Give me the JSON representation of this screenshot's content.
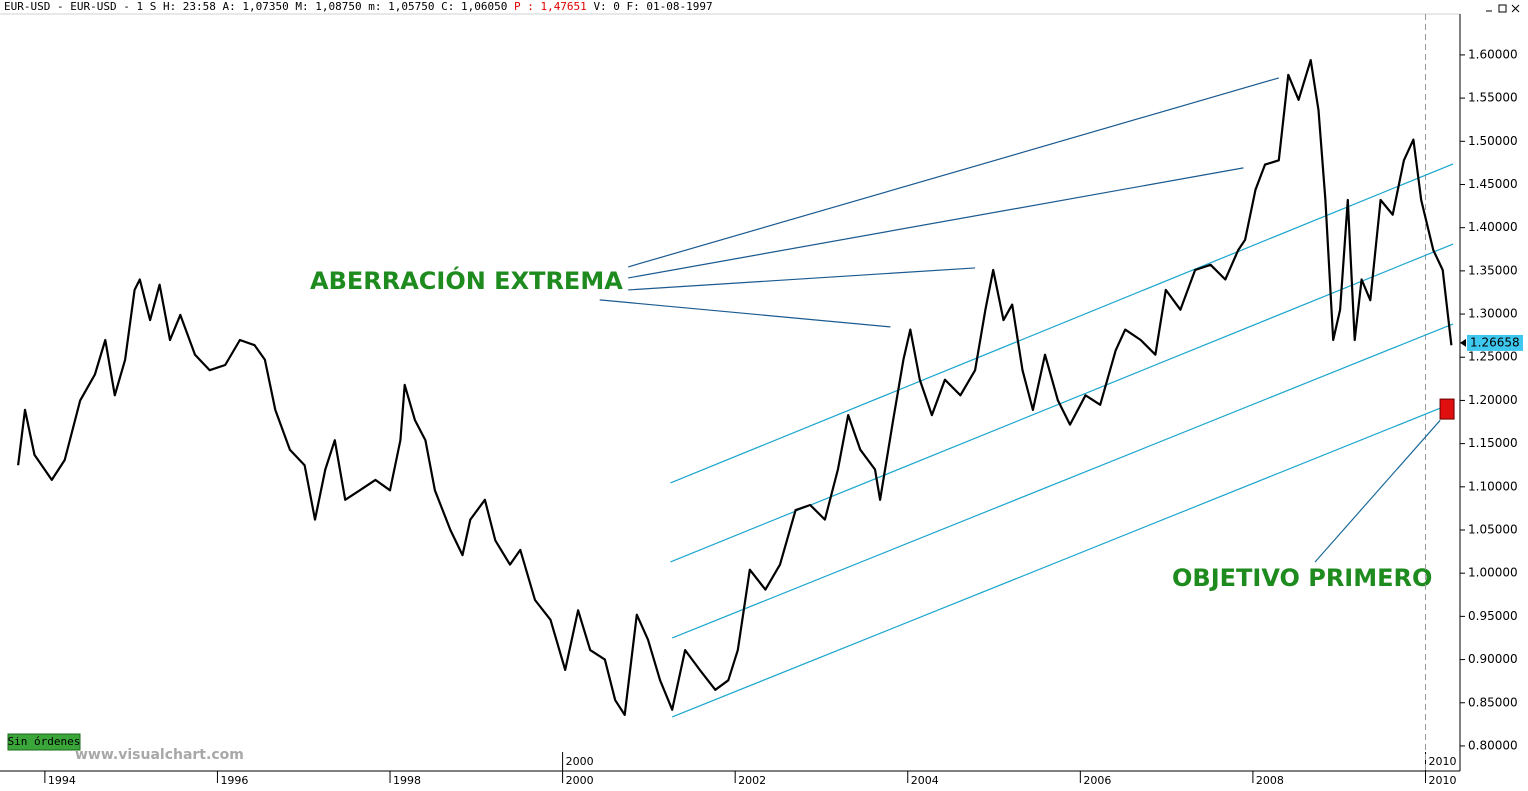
{
  "chart_data": {
    "type": "line",
    "header": [
      "EUR-USD - EUR-USD -  1 S H: 23:58 A: 1,07350 M: 1,08750 m: 1,05750 C: 1,06050",
      "P : 1,47651",
      "V: 0 F: 01-08-1997"
    ],
    "header_colors": [
      "#000000",
      "#e00000",
      "#000000"
    ],
    "annotations": [
      "ABERRACIÓN EXTREMA",
      "OBJETIVO PRIMERO"
    ],
    "status": "Sin órdenes",
    "watermark": "www.visualchart.com",
    "xlim": [
      1993.48,
      2010.4
    ],
    "ylim": [
      0.771,
      1.652
    ],
    "xticks": [
      1994,
      1996,
      1998,
      2000,
      2002,
      2004,
      2006,
      2008,
      2010
    ],
    "x_markers": [
      2000,
      2010
    ],
    "yticks": [
      {
        "value": 0.8,
        "label": "0.80000"
      },
      {
        "value": 0.85,
        "label": "0.85000"
      },
      {
        "value": 0.9,
        "label": "0.90000"
      },
      {
        "value": 0.95,
        "label": "0.95000"
      },
      {
        "value": 1.0,
        "label": "1.00000"
      },
      {
        "value": 1.05,
        "label": "1.05000"
      },
      {
        "value": 1.1,
        "label": "1.10000"
      },
      {
        "value": 1.15,
        "label": "1.15000"
      },
      {
        "value": 1.2,
        "label": "1.20000"
      },
      {
        "value": 1.25,
        "label": "1.25000"
      },
      {
        "value": 1.3,
        "label": "1.30000"
      },
      {
        "value": 1.35,
        "label": "1.35000"
      },
      {
        "value": 1.4,
        "label": "1.40000"
      },
      {
        "value": 1.45,
        "label": "1.45000"
      },
      {
        "value": 1.5,
        "label": "1.50000"
      },
      {
        "value": 1.55,
        "label": "1.55000"
      },
      {
        "value": 1.6,
        "label": "1.60000"
      }
    ],
    "last_price": 1.26658,
    "x": [
      1993.69,
      1993.77,
      1993.88,
      1994.08,
      1994.23,
      1994.41,
      1994.58,
      1994.7,
      1994.81,
      1994.93,
      1995.04,
      1995.1,
      1995.22,
      1995.33,
      1995.45,
      1995.57,
      1995.74,
      1995.91,
      1996.09,
      1996.26,
      1996.43,
      1996.55,
      1996.67,
      1996.84,
      1997.01,
      1997.13,
      1997.25,
      1997.36,
      1997.48,
      1997.65,
      1997.83,
      1998.0,
      1998.12,
      1998.17,
      1998.29,
      1998.41,
      1998.52,
      1998.7,
      1998.84,
      1998.93,
      1999.1,
      1999.22,
      1999.39,
      1999.51,
      1999.68,
      1999.86,
      2000.03,
      2000.18,
      2000.32,
      2000.49,
      2000.61,
      2000.72,
      2000.86,
      2000.99,
      2001.13,
      2001.27,
      2001.42,
      2001.59,
      2001.77,
      2001.92,
      2002.03,
      2002.17,
      2002.35,
      2002.52,
      2002.7,
      2002.87,
      2003.04,
      2003.19,
      2003.31,
      2003.45,
      2003.62,
      2003.68,
      2003.83,
      2003.95,
      2004.03,
      2004.14,
      2004.28,
      2004.43,
      2004.61,
      2004.78,
      2004.9,
      2004.99,
      2005.11,
      2005.21,
      2005.33,
      2005.45,
      2005.59,
      2005.74,
      2005.88,
      2006.06,
      2006.23,
      2006.41,
      2006.52,
      2006.7,
      2006.87,
      2006.99,
      2007.16,
      2007.33,
      2007.51,
      2007.68,
      2007.83,
      2007.91,
      2008.03,
      2008.14,
      2008.3,
      2008.41,
      2008.53,
      2008.67,
      2008.76,
      2008.84,
      2008.93,
      2009.01,
      2009.1,
      2009.18,
      2009.26,
      2009.36,
      2009.48,
      2009.62,
      2009.75,
      2009.86,
      2009.95,
      2010.09,
      2010.2,
      2010.3
    ],
    "series": [
      {
        "name": "EUR-USD",
        "color": "#000000",
        "values": [
          1.125,
          1.189,
          1.137,
          1.108,
          1.131,
          1.2,
          1.23,
          1.27,
          1.206,
          1.247,
          1.328,
          1.34,
          1.293,
          1.334,
          1.27,
          1.299,
          1.253,
          1.235,
          1.241,
          1.27,
          1.264,
          1.247,
          1.189,
          1.143,
          1.125,
          1.062,
          1.12,
          1.154,
          1.085,
          1.096,
          1.108,
          1.096,
          1.154,
          1.218,
          1.177,
          1.154,
          1.096,
          1.05,
          1.021,
          1.062,
          1.085,
          1.038,
          1.01,
          1.027,
          0.969,
          0.946,
          0.888,
          0.957,
          0.911,
          0.9,
          0.853,
          0.836,
          0.952,
          0.923,
          0.876,
          0.842,
          0.911,
          0.888,
          0.865,
          0.876,
          0.911,
          1.004,
          0.981,
          1.01,
          1.073,
          1.079,
          1.062,
          1.12,
          1.183,
          1.143,
          1.12,
          1.085,
          1.177,
          1.247,
          1.282,
          1.224,
          1.183,
          1.224,
          1.206,
          1.235,
          1.305,
          1.351,
          1.293,
          1.311,
          1.235,
          1.189,
          1.253,
          1.2,
          1.172,
          1.206,
          1.195,
          1.258,
          1.282,
          1.27,
          1.253,
          1.328,
          1.305,
          1.351,
          1.357,
          1.34,
          1.374,
          1.386,
          1.444,
          1.473,
          1.478,
          1.577,
          1.548,
          1.594,
          1.536,
          1.432,
          1.27,
          1.305,
          1.432,
          1.27,
          1.34,
          1.316,
          1.432,
          1.415,
          1.478,
          1.502,
          1.432,
          1.374,
          1.351,
          1.264
        ]
      }
    ],
    "trendlines": [
      {
        "x": [
          2001.25,
          2010.32
        ],
        "y": [
          1.1045,
          1.4738
        ],
        "color": "#1ba6cc"
      },
      {
        "x": [
          2001.25,
          2010.32
        ],
        "y": [
          1.013,
          1.381
        ],
        "color": "#1ba6cc"
      },
      {
        "x": [
          2001.27,
          2010.32
        ],
        "y": [
          0.925,
          1.2886
        ],
        "color": "#1ba6cc"
      },
      {
        "x": [
          2001.27,
          2010.17
        ],
        "y": [
          0.8336,
          1.191
        ],
        "color": "#1ba6cc"
      },
      {
        "x": [
          2008.72,
          2010.17
        ],
        "y": [
          1.013,
          1.177
        ],
        "color": "#1a6a9a"
      },
      {
        "x": [
          2000.76,
          2008.3
        ],
        "y": [
          1.3546,
          1.5734
        ],
        "color": "#1a5a90"
      },
      {
        "x": [
          2000.76,
          2007.89
        ],
        "y": [
          1.3418,
          1.4692
        ],
        "color": "#1a5a90"
      },
      {
        "x": [
          2000.76,
          2004.78
        ],
        "y": [
          1.3279,
          1.3534
        ],
        "color": "#1a5a90"
      },
      {
        "x": [
          2000.43,
          2003.8
        ],
        "y": [
          1.3164,
          1.2851
        ],
        "color": "#1a5a90"
      }
    ],
    "target": {
      "x": 2010.25,
      "y": 1.19,
      "color": "#e01010"
    }
  }
}
